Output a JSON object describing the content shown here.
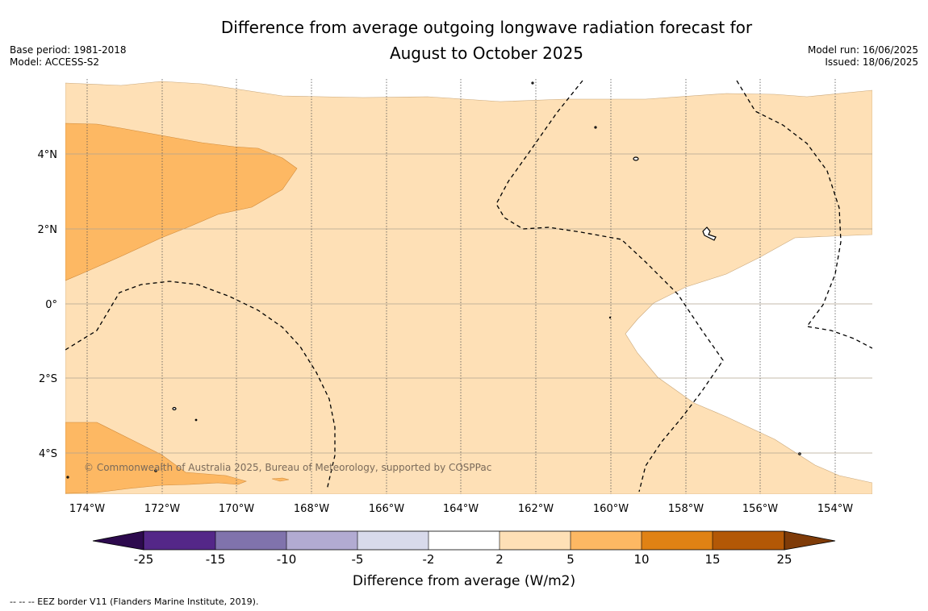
{
  "title": {
    "line1": "Difference from average outgoing longwave radiation forecast for",
    "line2": "August to October 2025"
  },
  "meta_left": {
    "base_period": "Base period: 1981-2018",
    "model": "Model: ACCESS-S2"
  },
  "meta_right": {
    "model_run": "Model run: 16/06/2025",
    "issued": "Issued: 18/06/2025"
  },
  "copyright": "© Commonwealth of Australia 2025, Bureau of Meteorology, supported by COSPPac",
  "axes": {
    "longitude_labels": [
      "174°W",
      "172°W",
      "170°W",
      "168°W",
      "166°W",
      "164°W",
      "162°W",
      "160°W",
      "158°W",
      "156°W",
      "154°W"
    ],
    "latitude_labels": [
      "4°N",
      "2°N",
      "0°",
      "2°S",
      "4°S"
    ]
  },
  "colorbar": {
    "label": "Difference from average (W/m2)",
    "ticks": [
      "-25",
      "-15",
      "-10",
      "-5",
      "-2",
      "2",
      "5",
      "10",
      "15",
      "25"
    ],
    "colors": {
      "lt_-25": "#2d0a4e",
      "-25_-15": "#542788",
      "-15_-10": "#8073ac",
      "-10_-5": "#b2abd2",
      "-5_-2": "#d8daeb",
      "-2_2": "#ffffff",
      "2_5": "#fee0b6",
      "5_10": "#fdb863",
      "10_15": "#e08214",
      "15_25": "#b35806",
      "gt_25": "#7f3b08"
    }
  },
  "footnote": "--  --  -- EEZ border V11 (Flanders Marine Institute, 2019)."
}
